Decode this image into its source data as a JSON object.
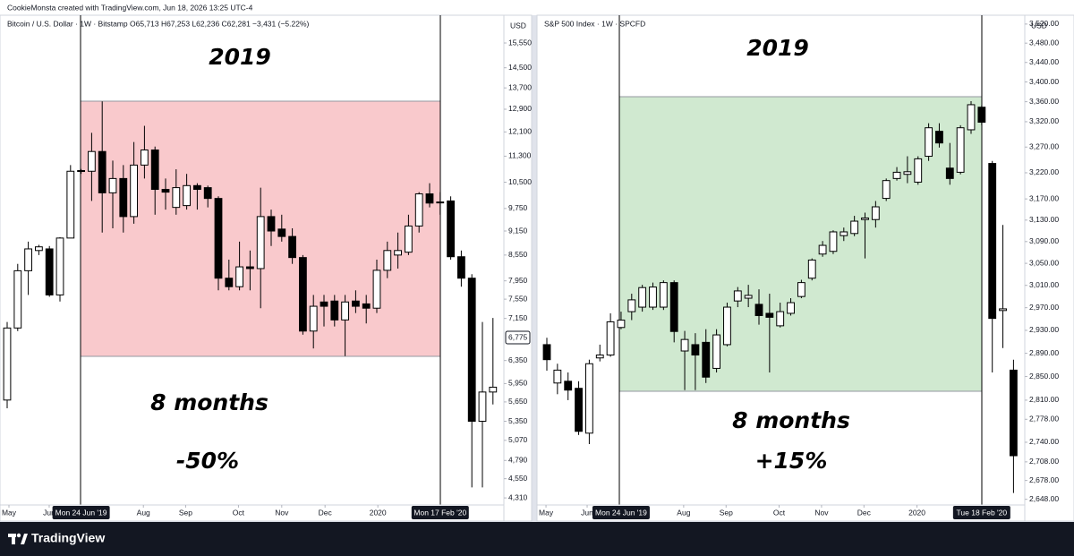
{
  "header": {
    "text": "CookieMonsta created with TradingView.com, Jun 18, 2026 13:25 UTC-4"
  },
  "footer": {
    "logo": "TradingView"
  },
  "chart_data": [
    {
      "type": "candlestick",
      "title": "Bitcoin / U.S. Dollar · 1W · Bitstamp  O65,713 H67,253 L62,236 C62,281 −3,431 (−5.22%)",
      "currency": "USD",
      "log_scale": true,
      "up_color": "#ffffff",
      "down_color": "#000000",
      "range_color": "#f9c9cc",
      "annotations": [
        "2019",
        "8 months",
        "-50%"
      ],
      "categories": [
        null,
        null,
        null,
        null,
        null,
        null,
        null,
        "Mon 24 Jun '19",
        null,
        null,
        null,
        null,
        null,
        null,
        null,
        null,
        null,
        null,
        null,
        null,
        null,
        null,
        null,
        null,
        null,
        null,
        null,
        null,
        null,
        null,
        null,
        null,
        null,
        null,
        null,
        null,
        null,
        null,
        null,
        null,
        null,
        "Mon 17 Feb '20",
        null,
        null,
        null,
        null,
        null
      ],
      "xticks": [
        {
          "value": 0.17,
          "label": "May"
        },
        {
          "value": 3.98,
          "label": "Jun"
        },
        {
          "value": 12.9,
          "label": "Aug"
        },
        {
          "value": 16.9,
          "label": "Sep"
        },
        {
          "value": 21.9,
          "label": "Oct"
        },
        {
          "value": 26.0,
          "label": "Nov"
        },
        {
          "value": 30.1,
          "label": "Dec"
        },
        {
          "value": 35.1,
          "label": "2020"
        }
      ],
      "open": [
        5680,
        6960,
        8180,
        8660,
        8700,
        7640,
        8970,
        10830,
        10830,
        11450,
        10190,
        10610,
        9530,
        11020,
        11500,
        10290,
        9780,
        9830,
        10400,
        10340,
        10030,
        8010,
        7820,
        8270,
        8230,
        9530,
        9200,
        9010,
        8490,
        6900,
        7490,
        7510,
        7120,
        7510,
        7450,
        7360,
        8190,
        8550,
        8620,
        9280,
        10160,
        9930,
        9960,
        8510,
        8010,
        5350,
        5810
      ],
      "high": [
        7080,
        8340,
        8880,
        8800,
        8770,
        8990,
        11020,
        10900,
        12070,
        13190,
        11160,
        11020,
        11760,
        12310,
        11610,
        10610,
        10890,
        10750,
        10470,
        10400,
        10090,
        8440,
        8880,
        8660,
        10340,
        9720,
        9580,
        9220,
        8550,
        7640,
        7640,
        7640,
        7640,
        7740,
        7640,
        8440,
        8880,
        9110,
        9580,
        10210,
        10470,
        10210,
        10090,
        8660,
        8100,
        7080,
        7160
      ],
      "low": [
        5550,
        6900,
        7640,
        8550,
        7600,
        7500,
        8970,
        10750,
        9960,
        9110,
        9220,
        9110,
        9340,
        10610,
        9580,
        9720,
        9580,
        9720,
        9720,
        9780,
        7740,
        7740,
        7740,
        7740,
        7360,
        8770,
        8880,
        8340,
        6830,
        6570,
        6990,
        6990,
        6430,
        7260,
        7050,
        7260,
        8010,
        8230,
        8550,
        9110,
        9780,
        9580,
        8440,
        7820,
        4440,
        4440,
        5610
      ],
      "close": [
        6960,
        8180,
        8700,
        8750,
        7640,
        8970,
        10830,
        10850,
        11450,
        10190,
        10610,
        9530,
        11020,
        11500,
        10290,
        10210,
        10340,
        10400,
        10290,
        10030,
        8010,
        7820,
        8270,
        8230,
        9530,
        9150,
        9010,
        8490,
        6900,
        7400,
        7400,
        7120,
        7490,
        7400,
        7360,
        8190,
        8660,
        8660,
        9280,
        10160,
        9900,
        9910,
        8510,
        8010,
        5350,
        5810,
        5890
      ],
      "ylim": [
        4225,
        16690
      ],
      "yticks": [
        {
          "value": 15550,
          "label": "15,550"
        },
        {
          "value": 14500,
          "label": "14,500"
        },
        {
          "value": 13700,
          "label": "13,700"
        },
        {
          "value": 12900,
          "label": "12,900"
        },
        {
          "value": 12100,
          "label": "12,100"
        },
        {
          "value": 11300,
          "label": "11,300"
        },
        {
          "value": 10500,
          "label": "10,500"
        },
        {
          "value": 9750,
          "label": "9,750"
        },
        {
          "value": 9150,
          "label": "9,150"
        },
        {
          "value": 8550,
          "label": "8,550"
        },
        {
          "value": 7950,
          "label": "7,950"
        },
        {
          "value": 7550,
          "label": "7,550"
        },
        {
          "value": 7150,
          "label": "7,150"
        },
        {
          "value": 6350,
          "label": "6,350"
        },
        {
          "value": 5950,
          "label": "5,950"
        },
        {
          "value": 5650,
          "label": "5,650"
        },
        {
          "value": 5350,
          "label": "5,350"
        },
        {
          "value": 5070,
          "label": "5,070"
        },
        {
          "value": 4790,
          "label": "4,790"
        },
        {
          "value": 4550,
          "label": "4,550"
        },
        {
          "value": 4310,
          "label": "4,310"
        }
      ],
      "last_price": {
        "value": 6775,
        "label": "6,775"
      }
    },
    {
      "type": "candlestick",
      "title": "S&P 500 Index · 1W · SPCFD",
      "currency": "USD",
      "log_scale": true,
      "up_color": "#ffffff",
      "down_color": "#000000",
      "range_color": "#d0e9d0",
      "annotations": [
        "2019",
        "8 months",
        "+15%"
      ],
      "categories": [
        null,
        null,
        null,
        null,
        null,
        null,
        null,
        "Mon 24 Jun '19",
        null,
        null,
        null,
        null,
        null,
        null,
        null,
        null,
        null,
        null,
        null,
        null,
        null,
        null,
        null,
        null,
        null,
        null,
        null,
        null,
        null,
        null,
        null,
        null,
        null,
        null,
        null,
        null,
        null,
        null,
        null,
        null,
        null,
        "Tue 18 Feb '20",
        null,
        null,
        null
      ],
      "xticks": [
        {
          "value": -0.08,
          "label": "May"
        },
        {
          "value": 3.8,
          "label": "Jun"
        },
        {
          "value": 12.9,
          "label": "Aug"
        },
        {
          "value": 16.9,
          "label": "Sep"
        },
        {
          "value": 21.9,
          "label": "Oct"
        },
        {
          "value": 25.9,
          "label": "Nov"
        },
        {
          "value": 29.9,
          "label": "Dec"
        },
        {
          "value": 34.9,
          "label": "2020"
        }
      ],
      "open": [
        2905,
        2839,
        2842,
        2830,
        2755,
        2882,
        2887,
        2935,
        2963,
        2971,
        2971,
        2971,
        3015,
        2894,
        2905,
        2909,
        2864,
        2905,
        2982,
        2987,
        2976,
        2960,
        2938,
        2960,
        2990,
        3023,
        3067,
        3072,
        3101,
        3105,
        3131,
        3131,
        3171,
        3209,
        3217,
        3202,
        3252,
        3301,
        3229,
        3221,
        3304,
        3349,
        3238,
        2965,
        2861
      ],
      "high": [
        2917,
        2872,
        2857,
        2842,
        2879,
        2905,
        2960,
        2963,
        2995,
        3011,
        3015,
        3019,
        3019,
        2929,
        2925,
        2932,
        2932,
        2979,
        3007,
        3011,
        3003,
        2995,
        2979,
        2987,
        3020,
        3059,
        3091,
        3111,
        3116,
        3138,
        3144,
        3166,
        3209,
        3231,
        3252,
        3252,
        3317,
        3317,
        3278,
        3313,
        3361,
        3353,
        3243,
        3121,
        2879
      ],
      "low": [
        2860,
        2820,
        2810,
        2752,
        2737,
        2876,
        2884,
        2932,
        2948,
        2963,
        2966,
        2966,
        2909,
        2827,
        2827,
        2839,
        2857,
        2902,
        2971,
        2971,
        2940,
        2857,
        2935,
        2956,
        2987,
        3019,
        3062,
        3067,
        3091,
        3100,
        3059,
        3116,
        3166,
        3205,
        3200,
        3197,
        3243,
        3269,
        3197,
        3217,
        3296,
        3313,
        2857,
        2899,
        2658
      ],
      "close": [
        2879,
        2861,
        2827,
        2758,
        2872,
        2887,
        2945,
        2948,
        2984,
        3006,
        3007,
        3015,
        2928,
        2914,
        2887,
        2849,
        2922,
        2971,
        3000,
        2992,
        2956,
        2953,
        2963,
        2979,
        3015,
        3056,
        3083,
        3108,
        3108,
        3128,
        3134,
        3155,
        3205,
        3221,
        3222,
        3247,
        3308,
        3278,
        3209,
        3308,
        3354,
        3319,
        2951,
        2968,
        2718
      ],
      "ylim": [
        2639,
        3533
      ],
      "yticks": [
        {
          "value": 3520,
          "label": "3,520.00"
        },
        {
          "value": 3480,
          "label": "3,480.00"
        },
        {
          "value": 3440,
          "label": "3,440.00"
        },
        {
          "value": 3400,
          "label": "3,400.00"
        },
        {
          "value": 3360,
          "label": "3,360.00"
        },
        {
          "value": 3320,
          "label": "3,320.00"
        },
        {
          "value": 3270,
          "label": "3,270.00"
        },
        {
          "value": 3220,
          "label": "3,220.00"
        },
        {
          "value": 3170,
          "label": "3,170.00"
        },
        {
          "value": 3130,
          "label": "3,130.00"
        },
        {
          "value": 3090,
          "label": "3,090.00"
        },
        {
          "value": 3050,
          "label": "3,050.00"
        },
        {
          "value": 3010,
          "label": "3,010.00"
        },
        {
          "value": 2970,
          "label": "2,970.00"
        },
        {
          "value": 2930,
          "label": "2,930.00"
        },
        {
          "value": 2890,
          "label": "2,890.00"
        },
        {
          "value": 2850,
          "label": "2,850.00"
        },
        {
          "value": 2810,
          "label": "2,810.00"
        },
        {
          "value": 2778,
          "label": "2,778.00"
        },
        {
          "value": 2740,
          "label": "2,740.00"
        },
        {
          "value": 2708,
          "label": "2,708.00"
        },
        {
          "value": 2678,
          "label": "2,678.00"
        },
        {
          "value": 2648,
          "label": "2,648.00"
        }
      ]
    }
  ]
}
